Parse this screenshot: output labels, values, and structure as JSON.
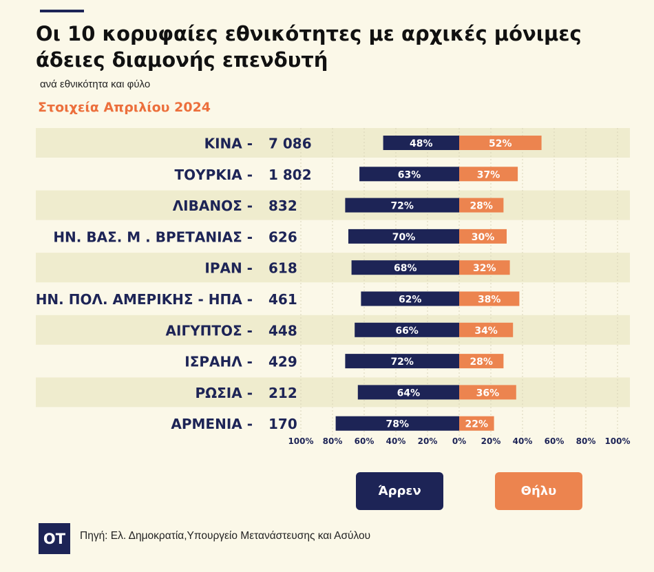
{
  "header": {
    "title": "Οι 10 κορυφαίες εθνικότητες με αρχικές μόνιμες άδειες διαμονής επενδυτή",
    "subtitle": "ανά εθνικότητα και φύλο",
    "date_label": "Στοιχεία Απριλίου 2024"
  },
  "colors": {
    "male": "#1d2456",
    "female": "#ec844f",
    "accent": "#ec6f3c",
    "row_band": "#efecce",
    "background": "#fbf8e8"
  },
  "legend": {
    "male": "Άρρεν",
    "female": "Θήλυ"
  },
  "footer": {
    "logo": "OT",
    "source": "Πηγή: Ελ. Δημοκρατία,Υπουργείο Μετανάστευσης και Ασύλου"
  },
  "chart_data": {
    "type": "bar",
    "orientation": "horizontal-diverging",
    "categories": [
      "ΚΙΝΑ -",
      "ΤΟΥΡΚΙΑ -",
      "ΛΙΒΑΝΟΣ -",
      "ΗΝ. ΒΑΣ. Μ . ΒΡΕΤΑΝΙΑΣ -",
      "ΙΡΑΝ -",
      "ΗΝ. ΠΟΛ. ΑΜΕΡΙΚΗΣ - ΗΠΑ -",
      "ΑΙΓΥΠΤΟΣ -",
      "ΙΣΡΑΗΛ -",
      "ΡΩΣΙΑ -",
      "ΑΡΜΕΝΙΑ -"
    ],
    "totals": [
      "7 086",
      "1 802",
      "832",
      "626",
      "618",
      "461",
      "448",
      "429",
      "212",
      "170"
    ],
    "series": [
      {
        "name": "Άρρεν",
        "values": [
          48,
          63,
          72,
          70,
          68,
          62,
          66,
          72,
          64,
          78
        ],
        "direction": "left"
      },
      {
        "name": "Θήλυ",
        "values": [
          52,
          37,
          28,
          30,
          32,
          38,
          34,
          28,
          36,
          22
        ],
        "direction": "right"
      }
    ],
    "value_labels": {
      "male": [
        "48%",
        "63%",
        "72%",
        "70%",
        "68%",
        "62%",
        "66%",
        "72%",
        "64%",
        "78%"
      ],
      "female": [
        "52%",
        "37%",
        "28%",
        "30%",
        "32%",
        "38%",
        "34%",
        "28%",
        "36%",
        "22%"
      ]
    },
    "x_ticks": [
      "100%",
      "80%",
      "60%",
      "40%",
      "20%",
      "0%",
      "20%",
      "40%",
      "60%",
      "80%",
      "100%"
    ],
    "xlim": [
      -100,
      100
    ],
    "grid": true,
    "legend_position": "bottom"
  }
}
